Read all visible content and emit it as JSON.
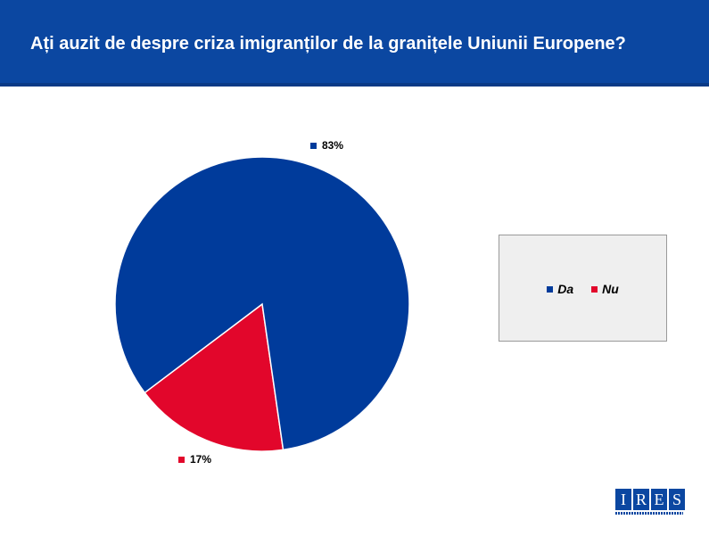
{
  "header": {
    "title": "Ați auzit de despre criza imigranților de la granițele Uniunii Europene?"
  },
  "chart_data": {
    "type": "pie",
    "title": "Ați auzit de despre criza imigranților de la granițele Uniunii Europene?",
    "categories": [
      "Da",
      "Nu"
    ],
    "values": [
      83,
      17
    ],
    "labels": [
      "83%",
      "17%"
    ],
    "colors": [
      "#003b9b",
      "#e2062b"
    ],
    "legend": "right"
  },
  "logo": {
    "letters": [
      "I",
      "R",
      "E",
      "S"
    ]
  }
}
